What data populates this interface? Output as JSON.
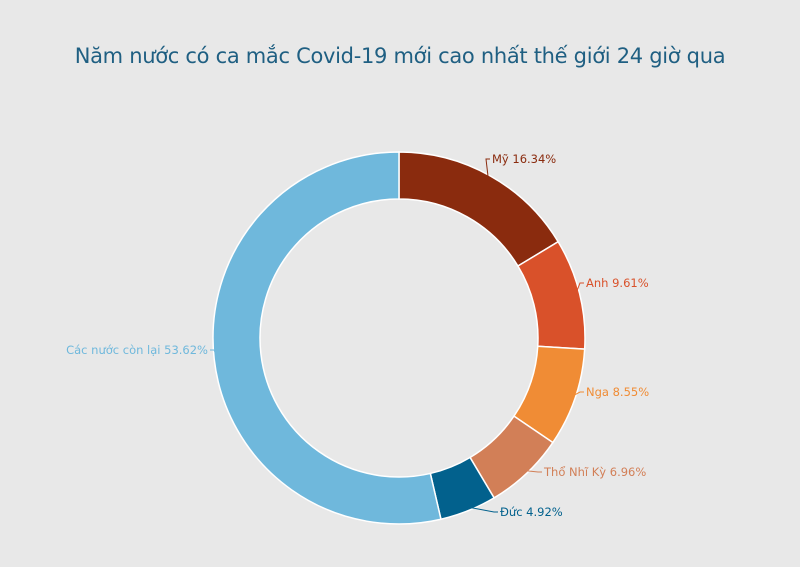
{
  "chart_data": {
    "type": "pie",
    "title": "Năm nước có ca mắc Covid-19 mới cao nhất thế giới 24 giờ qua",
    "variant": "donut",
    "slices": [
      {
        "label": "Mỹ 16.34%",
        "value": 16.34,
        "color": "#8a2b0e"
      },
      {
        "label": "Anh 9.61%",
        "value": 9.61,
        "color": "#d9512a"
      },
      {
        "label": "Nga 8.55%",
        "value": 8.55,
        "color": "#f08c35"
      },
      {
        "label": "Thổ Nhĩ Kỳ 6.96%",
        "value": 6.96,
        "color": "#d27f57"
      },
      {
        "label": "Đức 4.92%",
        "value": 4.92,
        "color": "#02618d"
      },
      {
        "label": "Các nước còn lại 53.62%",
        "value": 53.62,
        "color": "#6fb8dc"
      }
    ]
  }
}
